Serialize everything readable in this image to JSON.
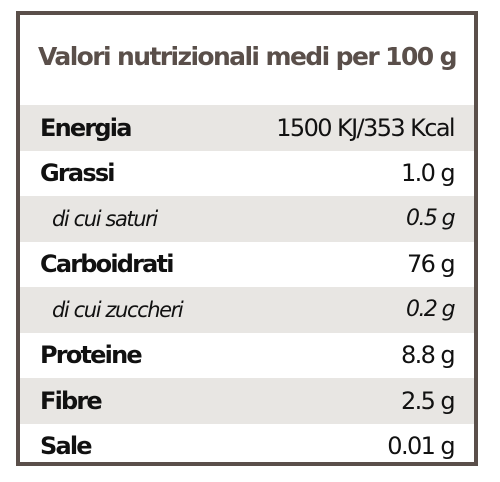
{
  "title": "Valori nutrizionali medi per 100 g",
  "rows": [
    {
      "label": "Energia",
      "value": "1500 KJ/353 Kcal"
    },
    {
      "label": "Grassi",
      "value": "1.0 g"
    },
    {
      "label": "di cui saturi",
      "value": "0.5 g"
    },
    {
      "label": "Carboidrati",
      "value": "76 g"
    },
    {
      "label": "di cui zuccheri",
      "value": "0.2 g"
    },
    {
      "label": "Proteine",
      "value": "8.8 g"
    },
    {
      "label": "Fibre",
      "value": "2.5 g"
    },
    {
      "label": "Sale",
      "value": "0.01 g"
    }
  ],
  "colors": {
    "border": "#5a4f4a",
    "title": "#5a4f4a",
    "shade": "#e8e6e3",
    "text": "#111111"
  }
}
